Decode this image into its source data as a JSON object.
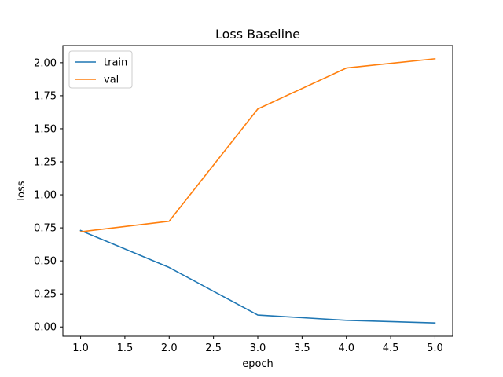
{
  "chart_data": {
    "type": "line",
    "title": "Loss Baseline",
    "xlabel": "epoch",
    "ylabel": "loss",
    "x": [
      1.0,
      2.0,
      3.0,
      4.0,
      5.0
    ],
    "series": [
      {
        "name": "train",
        "color": "#1f77b4",
        "values": [
          0.73,
          0.45,
          0.09,
          0.05,
          0.03
        ]
      },
      {
        "name": "val",
        "color": "#ff7f0e",
        "values": [
          0.72,
          0.8,
          1.65,
          1.96,
          2.03
        ]
      }
    ],
    "xlim": [
      0.8,
      5.2
    ],
    "ylim": [
      -0.07,
      2.13
    ],
    "xticks": [
      "1.0",
      "1.5",
      "2.0",
      "2.5",
      "3.0",
      "3.5",
      "4.0",
      "4.5",
      "5.0"
    ],
    "yticks": [
      "0.00",
      "0.25",
      "0.50",
      "0.75",
      "1.00",
      "1.25",
      "1.50",
      "1.75",
      "2.00"
    ],
    "grid": false,
    "legend_position": "top-left"
  }
}
